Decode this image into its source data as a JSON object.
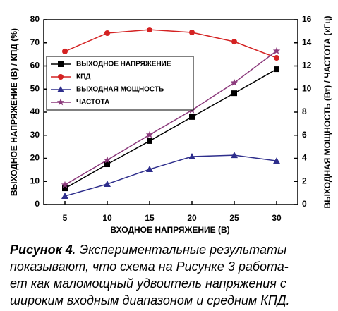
{
  "chart_data": {
    "type": "line",
    "x": [
      5,
      10,
      15,
      20,
      25,
      30
    ],
    "xlim": [
      2.5,
      32.5
    ],
    "xticks": [
      5,
      10,
      15,
      20,
      25,
      30
    ],
    "ylim": [
      0,
      80
    ],
    "yticks": [
      0,
      10,
      20,
      30,
      40,
      50,
      60,
      70,
      80
    ],
    "y2lim": [
      0,
      16
    ],
    "y2ticks": [
      0,
      2,
      4,
      6,
      8,
      10,
      12,
      14,
      16
    ],
    "xlabel": "ВХОДНОЕ НАПРЯЖЕНИЕ (В)",
    "ylabel": "ВЫХОДНОЕ НАПРЯЖЕНИЕ (В) / КПД (%)",
    "y2label": "ВЫХОДНАЯ МОЩНОСТЬ (Вт) / ЧАСТОТА (кГц)",
    "legend": "upper left",
    "series": [
      {
        "name": "ВЫХОДНОЕ НАПРЯЖЕНИЕ",
        "color": "#000000",
        "marker": "square",
        "values": [
          7.0,
          17.4,
          27.5,
          37.9,
          48.2,
          58.6
        ]
      },
      {
        "name": "КПД",
        "color": "#d42222",
        "marker": "circle",
        "values": [
          66.3,
          74.2,
          75.7,
          74.5,
          70.5,
          63.5
        ]
      },
      {
        "name": "ВЫХОДНАЯ МОЩНОСТЬ",
        "color": "#2e2e8c",
        "marker": "triangle",
        "axis": "y2",
        "values": [
          0.73,
          1.77,
          3.05,
          4.15,
          4.27,
          3.78
        ]
      },
      {
        "name": "ЧАСТОТА",
        "color": "#8c3a7c",
        "marker": "star",
        "axis": "y2",
        "values": [
          1.7,
          3.85,
          6.04,
          8.17,
          10.55,
          13.3
        ]
      }
    ]
  },
  "caption": {
    "label": "Рисунок 4",
    "lines": [
      ". Экспериментальные результаты",
      "показывают, что схема на Рисунке 3 работа-",
      "ет как маломощный удвоитель напряжения с",
      "широким входным диапазоном и средним КПД."
    ]
  }
}
